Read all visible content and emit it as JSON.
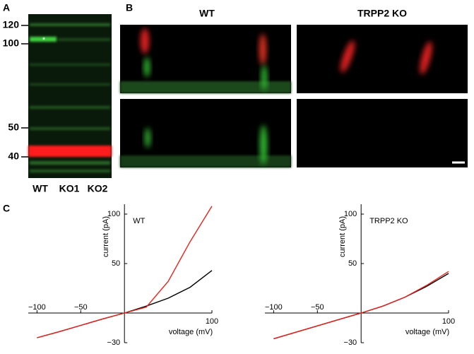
{
  "panel_labels": [
    "A",
    "B",
    "C"
  ],
  "blot": {
    "markers": [
      "120",
      "100",
      "50",
      "40"
    ],
    "lanes": [
      "WT",
      "KO1",
      "KO2"
    ],
    "asterisk": "*"
  },
  "images": {
    "columns": [
      "WT",
      "TRPP2 KO"
    ]
  },
  "chart_data": [
    {
      "type": "line",
      "annotation": "WT",
      "x_label": "voltage (mV)",
      "y_label": "current (pA)",
      "x": [
        -100,
        -75,
        -50,
        -25,
        0,
        25,
        50,
        75,
        100
      ],
      "series": [
        {
          "color": "#000000",
          "values": [
            -25,
            -19,
            -12.5,
            -6,
            0,
            7,
            15,
            26,
            43
          ]
        },
        {
          "color": "#e8231f",
          "values": [
            -25,
            -19,
            -12.5,
            -6,
            0,
            6,
            32,
            72,
            108
          ]
        }
      ],
      "xlim": [
        -110,
        100
      ],
      "ylim": [
        -30,
        110
      ],
      "xticks": [
        {
          "value": -100,
          "label": "−100"
        },
        {
          "value": -50,
          "label": "−50"
        },
        100
      ],
      "yticks": [
        100,
        50,
        {
          "value": -30,
          "label": "−30"
        }
      ]
    },
    {
      "type": "line",
      "annotation": "TRPP2 KO",
      "x_label": "voltage (mV)",
      "y_label": "current (pA)",
      "x": [
        -100,
        -75,
        -50,
        -25,
        0,
        25,
        50,
        75,
        100
      ],
      "series": [
        {
          "color": "#000000",
          "values": [
            -26,
            -19.5,
            -13,
            -6.5,
            0,
            7,
            16,
            27,
            40
          ]
        },
        {
          "color": "#e8231f",
          "values": [
            -26,
            -19.5,
            -13,
            -6.5,
            0,
            7,
            16,
            28,
            42
          ]
        }
      ],
      "xlim": [
        -110,
        100
      ],
      "ylim": [
        -30,
        110
      ],
      "xticks": [
        {
          "value": -100,
          "label": "−100"
        },
        {
          "value": -50,
          "label": "−50"
        },
        100
      ],
      "yticks": [
        100,
        50,
        {
          "value": -30,
          "label": "−30"
        }
      ]
    }
  ]
}
